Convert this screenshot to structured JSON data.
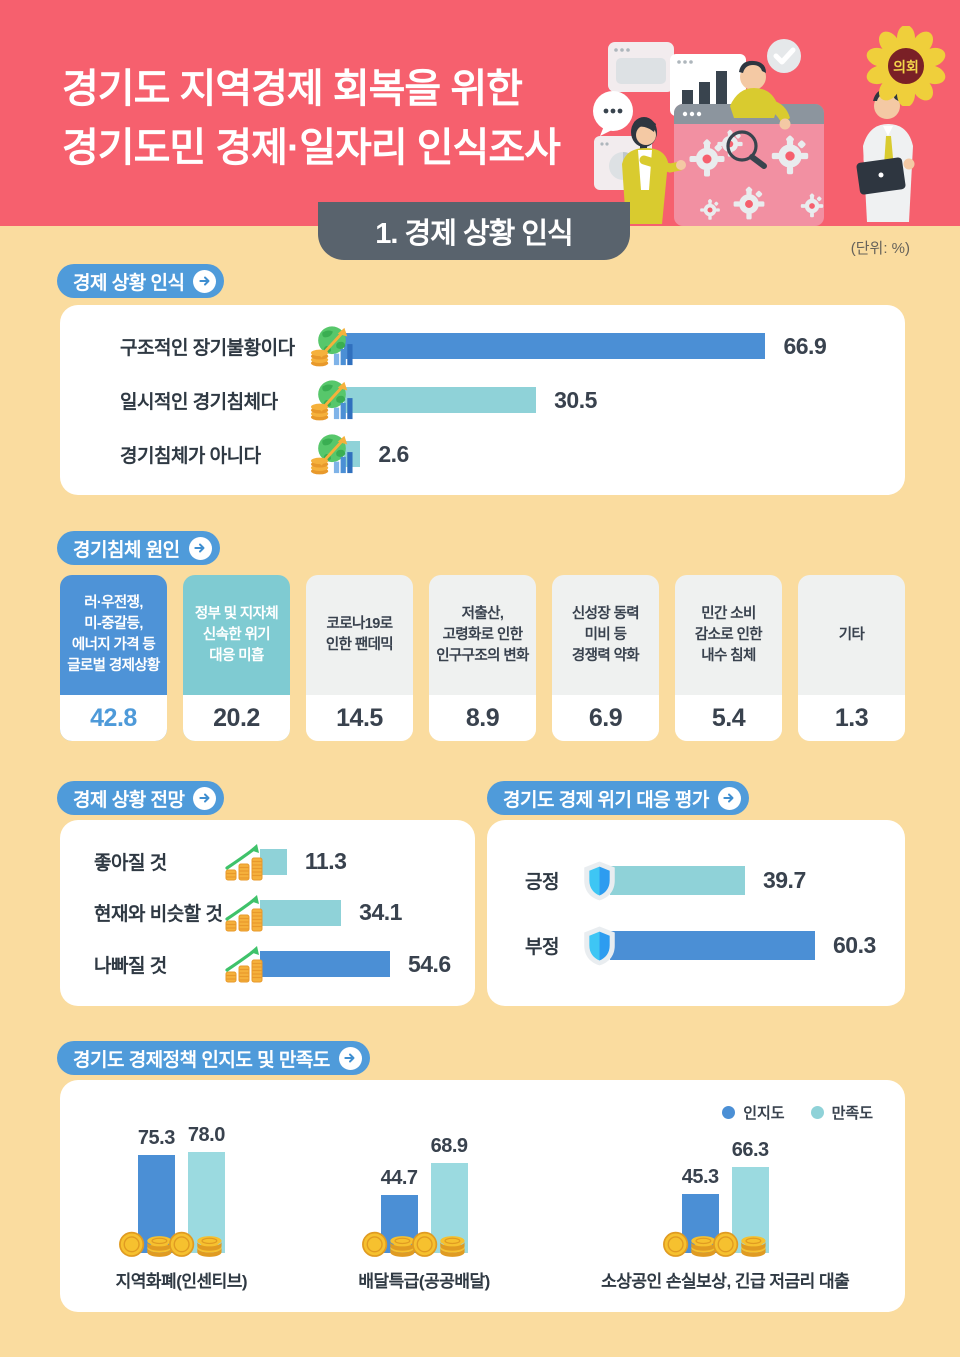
{
  "header": {
    "title_lines": [
      "경기도 지역경제 회복을 위한",
      "경기도민 경제·일자리 인식조사"
    ],
    "emblem": "의회"
  },
  "tab": {
    "label": "1. 경제 상황 인식"
  },
  "unit_note": "(단위: %)",
  "colors": {
    "header_pink": "#F6606E",
    "body_cream": "#FADC9F",
    "tab_gray": "#59636D",
    "badge_blue": "#4F9BDA",
    "bar_blue": "#4B8FD5",
    "bar_teal": "#8FD2D8",
    "card_teal": "#7FCBD2",
    "card_gray": "#EFF1F0",
    "ink": "#39424E"
  },
  "sections": {
    "perception": {
      "badge": "경제 상황 인식",
      "bars": [
        {
          "label": "구조적인 장기불황이다",
          "value": "66.9",
          "tone": "blue"
        },
        {
          "label": "일시적인 경기침체다",
          "value": "30.5",
          "tone": "teal"
        },
        {
          "label": "경기침체가 아니다",
          "value": "2.6",
          "tone": "teal"
        }
      ]
    },
    "causes": {
      "badge": "경기침체 원인",
      "cards": [
        {
          "lines": [
            "러·우전쟁,",
            "미-중갈등,",
            "에너지 가격 등",
            "글로벌 경제상황"
          ],
          "value": "42.8",
          "style": "blue"
        },
        {
          "lines": [
            "정부 및 지자체",
            "신속한 위기",
            "대응 미흡"
          ],
          "value": "20.2",
          "style": "teal"
        },
        {
          "lines": [
            "코로나19로",
            "인한 팬데믹"
          ],
          "value": "14.5",
          "style": "gray"
        },
        {
          "lines": [
            "저출산,",
            "고령화로 인한",
            "인구구조의 변화"
          ],
          "value": "8.9",
          "style": "gray"
        },
        {
          "lines": [
            "신성장 동력",
            "미비 등",
            "경쟁력 약화"
          ],
          "value": "6.9",
          "style": "gray"
        },
        {
          "lines": [
            "민간 소비",
            "감소로 인한",
            "내수 침체"
          ],
          "value": "5.4",
          "style": "gray"
        },
        {
          "lines": [
            "기타"
          ],
          "value": "1.3",
          "style": "gray"
        }
      ]
    },
    "outlook": {
      "badge": "경제 상황 전망",
      "bars": [
        {
          "label": "좋아질 것",
          "value": "11.3",
          "tone": "teal"
        },
        {
          "label": "현재와 비슷할 것",
          "value": "34.1",
          "tone": "teal"
        },
        {
          "label": "나빠질 것",
          "value": "54.6",
          "tone": "blue"
        }
      ]
    },
    "evaluation": {
      "badge": "경기도 경제 위기 대응 평가",
      "bars": [
        {
          "label": "긍정",
          "value": "39.7",
          "tone": "teal"
        },
        {
          "label": "부정",
          "value": "60.3",
          "tone": "blue"
        }
      ]
    },
    "policy": {
      "badge": "경기도 경제정책 인지도 및 만족도",
      "legend": [
        {
          "label": "인지도",
          "tone": "blue"
        },
        {
          "label": "만족도",
          "tone": "teal"
        }
      ],
      "groups": [
        {
          "label": "지역화폐(인센티브)",
          "awareness": "75.3",
          "satisfaction": "78.0"
        },
        {
          "label": "배달특급(공공배달)",
          "awareness": "44.7",
          "satisfaction": "68.9"
        },
        {
          "label": "소상공인 손실보상, 긴급 저금리 대출",
          "awareness": "45.3",
          "satisfaction": "66.3"
        }
      ]
    }
  },
  "chart_data": [
    {
      "type": "bar",
      "orientation": "horizontal",
      "title": "경제 상황 인식",
      "categories": [
        "구조적인 장기불황이다",
        "일시적인 경기침체다",
        "경기침체가 아니다"
      ],
      "values": [
        66.9,
        30.5,
        2.6
      ],
      "unit": "%",
      "xlim": [
        0,
        100
      ],
      "grid": false,
      "legend_position": "none"
    },
    {
      "type": "bar",
      "title": "경기침체 원인",
      "categories": [
        "러·우전쟁, 미-중갈등, 에너지 가격 등 글로벌 경제상황",
        "정부 및 지자체 신속한 위기 대응 미흡",
        "코로나19로 인한 팬데믹",
        "저출산, 고령화로 인한 인구구조의 변화",
        "신성장 동력 미비 등 경쟁력 약화",
        "민간 소비 감소로 인한 내수 침체",
        "기타"
      ],
      "values": [
        42.8,
        20.2,
        14.5,
        8.9,
        6.9,
        5.4,
        1.3
      ],
      "unit": "%",
      "grid": false,
      "legend_position": "none"
    },
    {
      "type": "bar",
      "orientation": "horizontal",
      "title": "경제 상황 전망",
      "categories": [
        "좋아질 것",
        "현재와 비슷할 것",
        "나빠질 것"
      ],
      "values": [
        11.3,
        34.1,
        54.6
      ],
      "unit": "%",
      "xlim": [
        0,
        100
      ],
      "grid": false,
      "legend_position": "none"
    },
    {
      "type": "bar",
      "orientation": "horizontal",
      "title": "경기도 경제 위기 대응 평가",
      "categories": [
        "긍정",
        "부정"
      ],
      "values": [
        39.7,
        60.3
      ],
      "unit": "%",
      "xlim": [
        0,
        100
      ],
      "grid": false,
      "legend_position": "none"
    },
    {
      "type": "bar",
      "title": "경기도 경제정책 인지도 및 만족도",
      "categories": [
        "지역화폐(인센티브)",
        "배달특급(공공배달)",
        "소상공인 손실보상, 긴급 저금리 대출"
      ],
      "series": [
        {
          "name": "인지도",
          "values": [
            75.3,
            44.7,
            45.3
          ]
        },
        {
          "name": "만족도",
          "values": [
            78.0,
            68.9,
            66.3
          ]
        }
      ],
      "unit": "%",
      "ylim": [
        0,
        100
      ],
      "grid": false,
      "legend_position": "top-right"
    }
  ]
}
